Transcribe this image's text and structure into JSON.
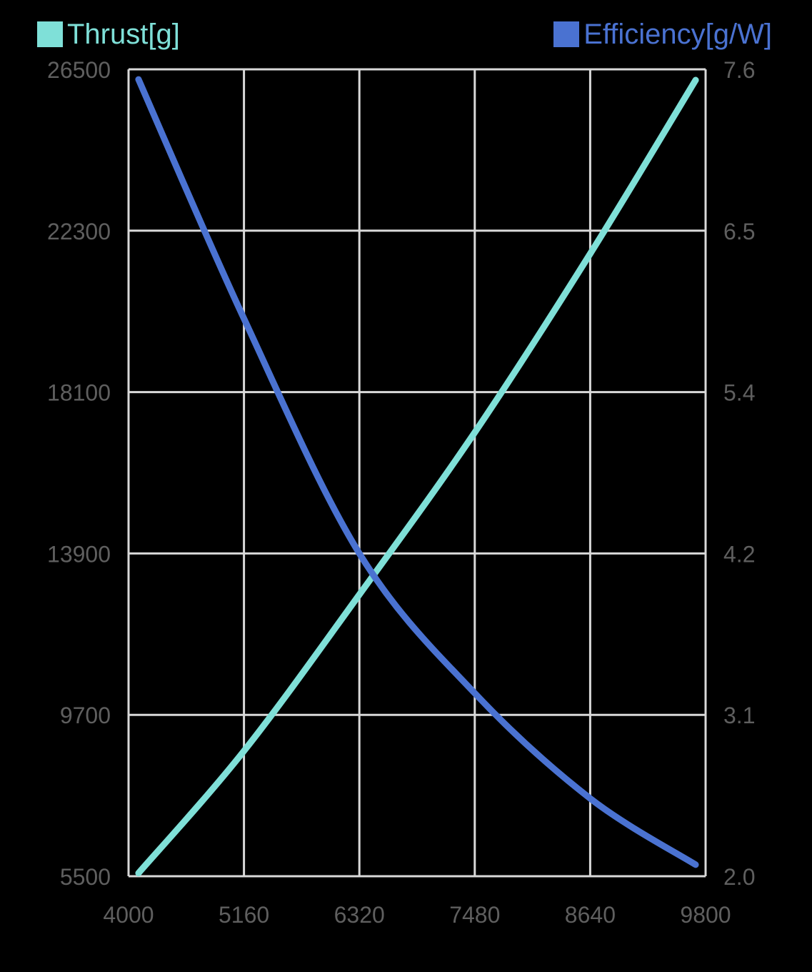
{
  "legend": {
    "left": {
      "label": "Thrust[g]",
      "color": "#7FE0D8"
    },
    "right": {
      "label": "Efficiency[g/W]",
      "color": "#4A72D1"
    }
  },
  "chart_data": {
    "type": "line",
    "title": "",
    "xlabel": "",
    "ylabel_left": "Thrust[g]",
    "ylabel_right": "Efficiency[g/W]",
    "xlim": [
      4000,
      9800
    ],
    "ylim_left": [
      5500,
      26500
    ],
    "ylim_right": [
      2.0,
      7.6
    ],
    "x_ticks": [
      "4000",
      "5160",
      "6320",
      "7480",
      "8640",
      "9800"
    ],
    "y_left_ticks": [
      "26500",
      "22300",
      "18100",
      "13900",
      "9700",
      "5500"
    ],
    "y_right_ticks": [
      "7.6",
      "6.5",
      "5.4",
      "4.2",
      "3.1",
      "2.0"
    ],
    "grid": true,
    "legend_position": "top",
    "x": [
      4100,
      5160,
      6320,
      7480,
      8640,
      9700
    ],
    "series": [
      {
        "name": "Thrust[g]",
        "axis": "left",
        "color": "#7FE0D8",
        "values": [
          5580,
          8760,
          12830,
          17050,
          21700,
          26220
        ]
      },
      {
        "name": "Efficiency[g/W]",
        "axis": "right",
        "color": "#4A72D1",
        "values": [
          7.53,
          5.87,
          4.24,
          3.27,
          2.54,
          2.08
        ]
      }
    ]
  }
}
